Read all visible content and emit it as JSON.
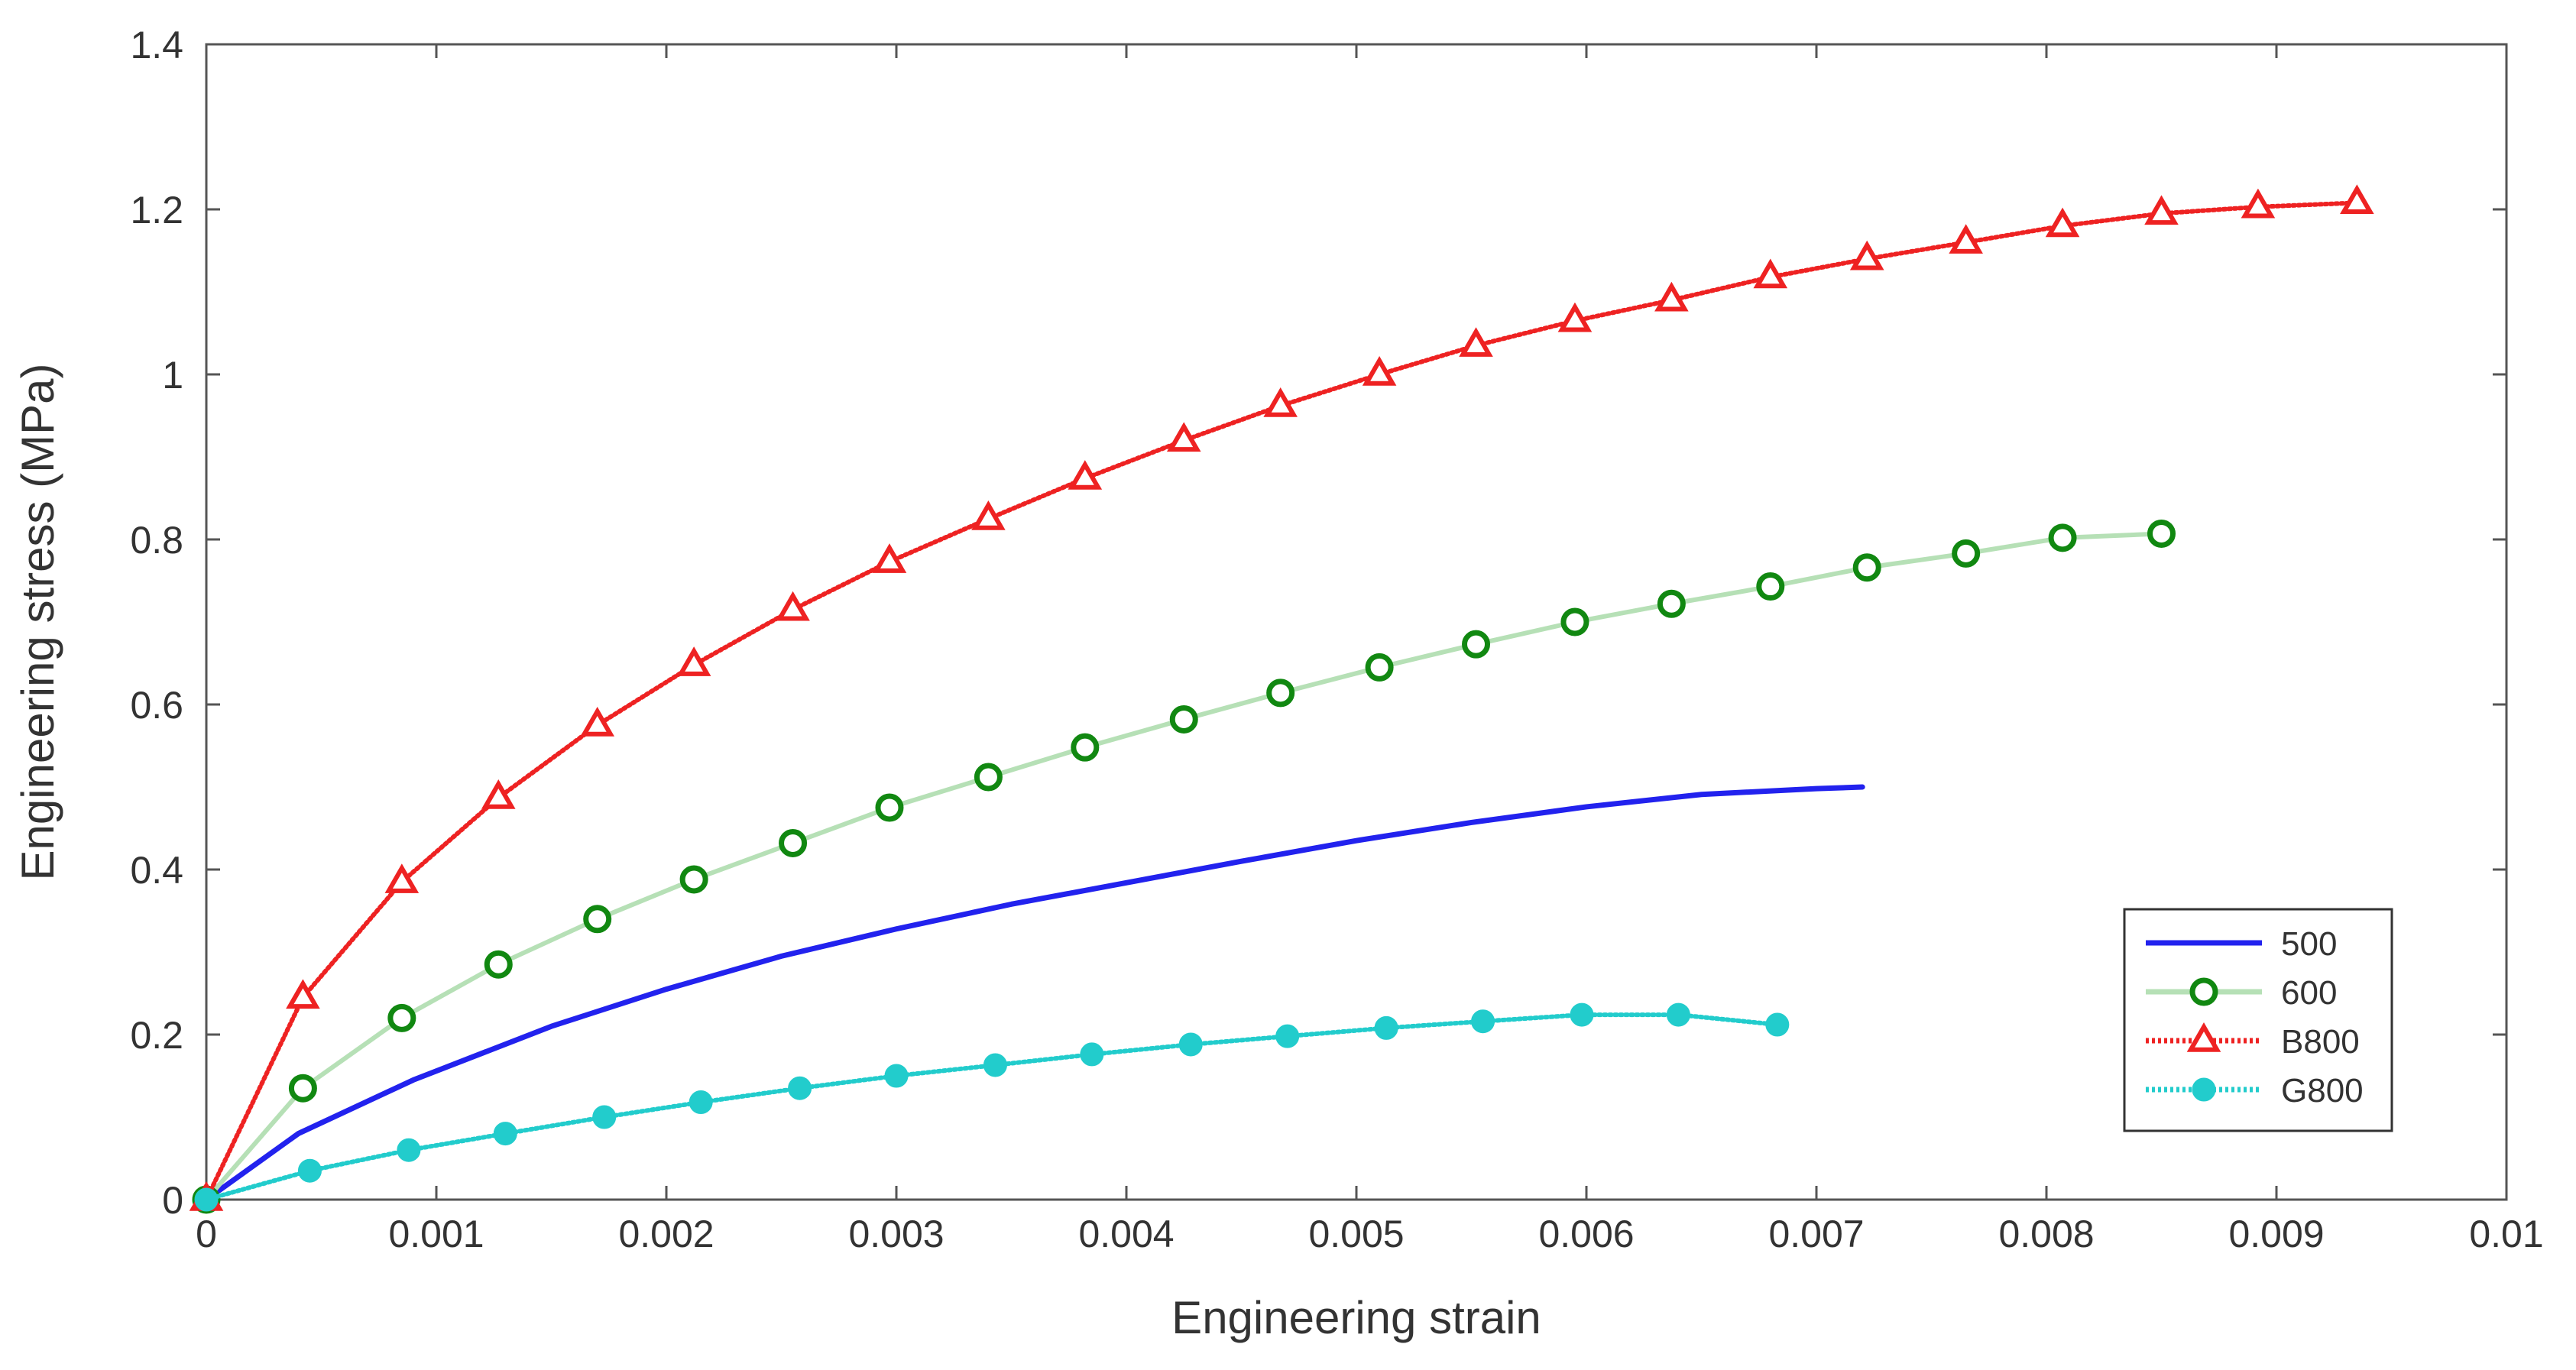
{
  "chart_data": {
    "type": "line",
    "title": "",
    "xlabel": "Engineering strain",
    "ylabel": "Engineering stress (MPa)",
    "xlim": [
      0,
      0.01
    ],
    "ylim": [
      0,
      1.4
    ],
    "x_ticks": [
      0,
      0.001,
      0.002,
      0.003,
      0.004,
      0.005,
      0.006,
      0.007,
      0.008,
      0.009,
      0.01
    ],
    "x_tick_labels": [
      "0",
      "0.001",
      "0.002",
      "0.003",
      "0.004",
      "0.005",
      "0.006",
      "0.007",
      "0.008",
      "0.009",
      "0.01"
    ],
    "y_ticks": [
      0,
      0.2,
      0.4,
      0.6,
      0.8,
      1,
      1.2,
      1.4
    ],
    "y_tick_labels": [
      "0",
      "0.2",
      "0.4",
      "0.6",
      "0.8",
      "1",
      "1.2",
      "1.4"
    ],
    "grid": false,
    "legend_position": "bottom-right",
    "series": [
      {
        "name": "500",
        "color": "#2222ee",
        "line": "solid",
        "marker": "none",
        "x": [
          0,
          0.0004,
          0.0009,
          0.0015,
          0.002,
          0.0025,
          0.003,
          0.0035,
          0.004,
          0.0045,
          0.005,
          0.0055,
          0.006,
          0.0065,
          0.007,
          0.0072
        ],
        "y": [
          0,
          0.08,
          0.145,
          0.21,
          0.255,
          0.295,
          0.328,
          0.358,
          0.384,
          0.41,
          0.435,
          0.457,
          0.476,
          0.491,
          0.498,
          0.5
        ]
      },
      {
        "name": "600",
        "color": "#118811",
        "line_color": "#b6e0b6",
        "line": "solid",
        "marker": "circle",
        "x": [
          0,
          0.00042,
          0.00085,
          0.00127,
          0.0017,
          0.00212,
          0.00255,
          0.00297,
          0.0034,
          0.00382,
          0.00425,
          0.00467,
          0.0051,
          0.00552,
          0.00595,
          0.00637,
          0.0068,
          0.00722,
          0.00765,
          0.00807,
          0.0085
        ],
        "y": [
          0,
          0.135,
          0.22,
          0.285,
          0.34,
          0.388,
          0.432,
          0.475,
          0.512,
          0.548,
          0.582,
          0.614,
          0.645,
          0.673,
          0.7,
          0.722,
          0.743,
          0.766,
          0.783,
          0.802,
          0.807
        ]
      },
      {
        "name": "B800",
        "color": "#ee2222",
        "line": "dotted",
        "marker": "triangle",
        "x": [
          0,
          0.00042,
          0.00085,
          0.00127,
          0.0017,
          0.00212,
          0.00255,
          0.00297,
          0.0034,
          0.00382,
          0.00425,
          0.00467,
          0.0051,
          0.00552,
          0.00595,
          0.00637,
          0.0068,
          0.00722,
          0.00765,
          0.00807,
          0.0085,
          0.00892,
          0.00935
        ],
        "y": [
          0,
          0.245,
          0.385,
          0.487,
          0.575,
          0.648,
          0.715,
          0.773,
          0.825,
          0.874,
          0.92,
          0.962,
          1.0,
          1.035,
          1.065,
          1.09,
          1.118,
          1.14,
          1.16,
          1.18,
          1.195,
          1.203,
          1.208
        ]
      },
      {
        "name": "G800",
        "color": "#22cccc",
        "line": "dotted",
        "marker": "circle-filled",
        "x": [
          0,
          0.00045,
          0.00088,
          0.0013,
          0.00173,
          0.00215,
          0.00258,
          0.003,
          0.00343,
          0.00385,
          0.00428,
          0.0047,
          0.00513,
          0.00555,
          0.00598,
          0.0064,
          0.00683
        ],
        "y": [
          0,
          0.035,
          0.06,
          0.08,
          0.1,
          0.118,
          0.135,
          0.15,
          0.163,
          0.176,
          0.188,
          0.198,
          0.208,
          0.216,
          0.224,
          0.224,
          0.212
        ]
      }
    ]
  }
}
